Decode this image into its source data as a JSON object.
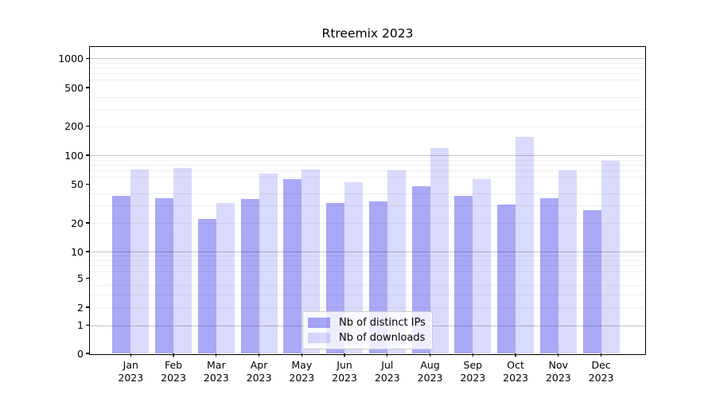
{
  "title": "Rtreemix 2023",
  "chart_data": {
    "type": "bar",
    "title": "Rtreemix 2023",
    "xlabel": "",
    "ylabel": "",
    "yscale": "symlog",
    "yticks": [
      0,
      1,
      2,
      5,
      10,
      20,
      50,
      100,
      200,
      500,
      1000
    ],
    "ylim": [
      0,
      1300
    ],
    "grid": "both",
    "categories": [
      "Jan 2023",
      "Feb 2023",
      "Mar 2023",
      "Apr 2023",
      "May 2023",
      "Jun 2023",
      "Jul 2023",
      "Aug 2023",
      "Sep 2023",
      "Oct 2023",
      "Nov 2023",
      "Dec 2023"
    ],
    "series": [
      {
        "name": "Nb of distinct IPs",
        "color": "#0a0ae8",
        "alpha": 0.35,
        "solid_color": "#a9a9f7",
        "values": [
          38,
          36,
          22,
          35,
          57,
          32,
          33,
          48,
          38,
          31,
          36,
          27
        ]
      },
      {
        "name": "Nb of downloads",
        "color": "#0a0ae8",
        "alpha": 0.15,
        "solid_color": "#d9d9fc",
        "values": [
          71,
          74,
          32,
          64,
          71,
          52,
          70,
          119,
          56,
          154,
          70,
          87
        ]
      }
    ],
    "legend": {
      "position": "lower center",
      "entries": [
        "Nb of distinct IPs",
        "Nb of downloads"
      ]
    }
  }
}
